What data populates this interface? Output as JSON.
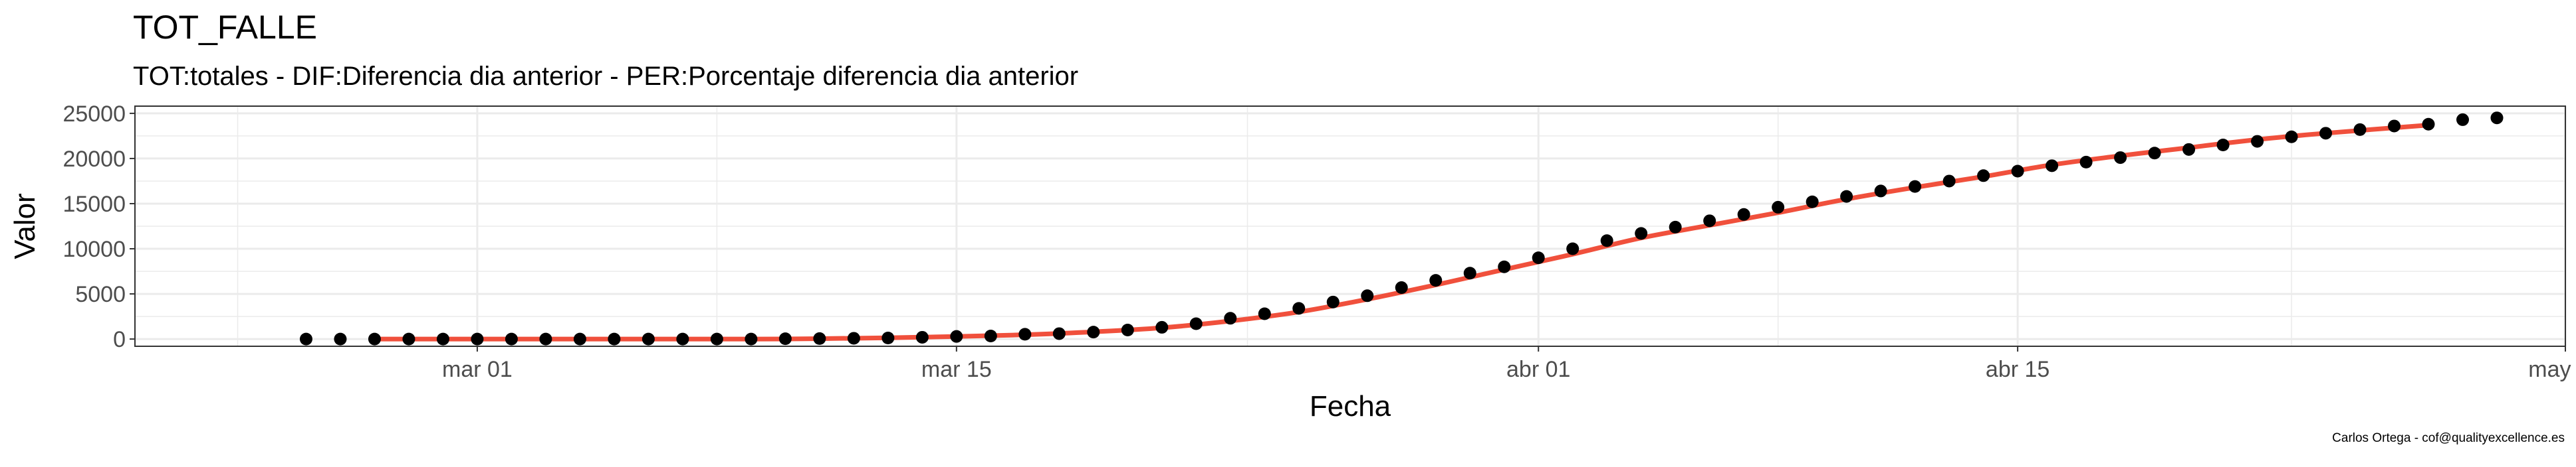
{
  "chart_data": {
    "type": "scatter",
    "title": "TOT_FALLE",
    "subtitle": "TOT:totales - DIF:Diferencia dia anterior - PER:Porcentaje diferencia dia anterior",
    "xlabel": "Fecha",
    "ylabel": "Valor",
    "caption": "Carlos Ortega - cof@qualityexcellence.es",
    "xlim": [
      "2020-02-20",
      "2020-05-01"
    ],
    "ylim": [
      -800,
      25800
    ],
    "x_ticks": [
      {
        "date": "2020-03-01",
        "label": "mar 01"
      },
      {
        "date": "2020-03-15",
        "label": "mar 15"
      },
      {
        "date": "2020-04-01",
        "label": "abr 01"
      },
      {
        "date": "2020-04-15",
        "label": "abr 15"
      },
      {
        "date": "2020-05-01",
        "label": "may 01"
      }
    ],
    "y_ticks": [
      0,
      5000,
      10000,
      15000,
      20000,
      25000
    ],
    "grid": true,
    "colors": {
      "points": "#000000",
      "smooth_line": "#f0503c",
      "grid": "#ebebeb",
      "panel_border": "#333333"
    },
    "series": [
      {
        "kind": "points",
        "x": [
          "2020-02-25",
          "2020-02-26",
          "2020-02-27",
          "2020-02-28",
          "2020-02-29",
          "2020-03-01",
          "2020-03-02",
          "2020-03-03",
          "2020-03-04",
          "2020-03-05",
          "2020-03-06",
          "2020-03-07",
          "2020-03-08",
          "2020-03-09",
          "2020-03-10",
          "2020-03-11",
          "2020-03-12",
          "2020-03-13",
          "2020-03-14",
          "2020-03-15",
          "2020-03-16",
          "2020-03-17",
          "2020-03-18",
          "2020-03-19",
          "2020-03-20",
          "2020-03-21",
          "2020-03-22",
          "2020-03-23",
          "2020-03-24",
          "2020-03-25",
          "2020-03-26",
          "2020-03-27",
          "2020-03-28",
          "2020-03-29",
          "2020-03-30",
          "2020-03-31",
          "2020-04-01",
          "2020-04-02",
          "2020-04-03",
          "2020-04-04",
          "2020-04-05",
          "2020-04-06",
          "2020-04-07",
          "2020-04-08",
          "2020-04-09",
          "2020-04-10",
          "2020-04-11",
          "2020-04-12",
          "2020-04-13",
          "2020-04-14",
          "2020-04-15",
          "2020-04-16",
          "2020-04-17",
          "2020-04-18",
          "2020-04-19",
          "2020-04-20",
          "2020-04-21",
          "2020-04-22",
          "2020-04-23",
          "2020-04-24",
          "2020-04-25",
          "2020-04-26",
          "2020-04-27",
          "2020-04-28",
          "2020-04-29"
        ],
        "y": [
          0,
          0,
          0,
          0,
          0,
          0,
          0,
          0,
          0,
          0,
          0,
          0,
          0,
          0,
          35,
          55,
          85,
          120,
          195,
          290,
          340,
          530,
          600,
          770,
          1000,
          1300,
          1700,
          2300,
          2800,
          3400,
          4100,
          4800,
          5700,
          6500,
          7300,
          8000,
          9000,
          10000,
          10900,
          11700,
          12400,
          13100,
          13800,
          14600,
          15200,
          15800,
          16400,
          16900,
          17500,
          18100,
          18600,
          19200,
          19600,
          20100,
          20600,
          21000,
          21500,
          21900,
          22400,
          22800,
          23200,
          23600,
          23800,
          24300,
          24500
        ]
      },
      {
        "kind": "smooth",
        "x": [
          "2020-02-27",
          "2020-03-01",
          "2020-03-04",
          "2020-03-07",
          "2020-03-10",
          "2020-03-13",
          "2020-03-15",
          "2020-03-17",
          "2020-03-19",
          "2020-03-21",
          "2020-03-23",
          "2020-03-25",
          "2020-03-27",
          "2020-03-29",
          "2020-03-31",
          "2020-04-02",
          "2020-04-04",
          "2020-04-06",
          "2020-04-08",
          "2020-04-10",
          "2020-04-12",
          "2020-04-14",
          "2020-04-16",
          "2020-04-18",
          "2020-04-20",
          "2020-04-22",
          "2020-04-24",
          "2020-04-27"
        ],
        "y": [
          0,
          0,
          0,
          0,
          10,
          140,
          290,
          480,
          800,
          1250,
          2000,
          3000,
          4400,
          6000,
          7700,
          9400,
          11200,
          12600,
          14000,
          15500,
          16800,
          18000,
          19300,
          20300,
          21200,
          22100,
          22800,
          23700
        ]
      }
    ]
  }
}
